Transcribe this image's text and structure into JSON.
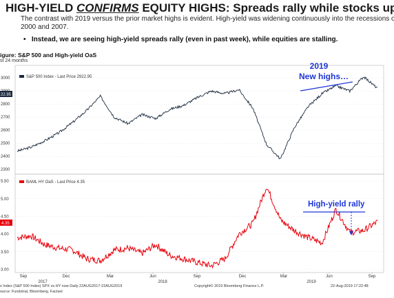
{
  "header": {
    "title_a": "HIGH-YIELD ",
    "title_b": "CONFIRMS",
    "title_c": " EQUITY HIGHS: Spreads rally while stocks up",
    "subtitle": "The contrast with 2019 versus the prior market highs is evident.  High-yield was widening continuously into the recessions of 2000 and 2007.",
    "bullet": "Instead, we are seeing high-yield spreads rally (even in past week), while equities are stalling."
  },
  "figure": {
    "title": "igure: S&P 500 and High-yield OaS",
    "subtitle": "st 24 months"
  },
  "colors": {
    "spx": "#1c2a3f",
    "hy": "#e8000a",
    "annotation": "#1f35d8"
  },
  "chart_data": [
    {
      "type": "line",
      "legend": "S&P 500 Index - Last Price 2922.95",
      "last_value_label": "22.95",
      "y_ticks": [
        "3000",
        "2900",
        "2800",
        "2700",
        "2600",
        "2500",
        "2400",
        "2300"
      ],
      "ylim": [
        2280,
        3080
      ],
      "annotation": "2019\nNew highs…",
      "series": [
        {
          "name": "S&P 500 Index",
          "x": [
            0,
            4,
            8,
            12,
            16,
            20,
            24,
            28,
            32,
            36,
            40,
            44,
            48,
            52,
            56,
            60,
            64,
            68,
            72,
            76,
            80,
            84,
            88,
            92,
            96,
            100,
            104
          ],
          "values": [
            2440,
            2470,
            2520,
            2580,
            2660,
            2750,
            2860,
            2700,
            2650,
            2720,
            2690,
            2760,
            2790,
            2850,
            2900,
            2880,
            2910,
            2770,
            2490,
            2380,
            2620,
            2780,
            2880,
            2940,
            2900,
            3010,
            2920
          ]
        }
      ]
    },
    {
      "type": "line",
      "legend": "BAML HY OaS - Last Price 4.35",
      "last_value_label": "4.35",
      "y_ticks": [
        "5.50",
        "5.00",
        "4.50",
        "4.00",
        "3.50",
        "3.00"
      ],
      "ylim": [
        2.95,
        5.6
      ],
      "annotation": "High-yield rally",
      "series": [
        {
          "name": "BAML HY OaS",
          "x": [
            0,
            4,
            8,
            12,
            16,
            20,
            24,
            28,
            32,
            36,
            40,
            44,
            48,
            52,
            56,
            60,
            64,
            68,
            72,
            76,
            80,
            84,
            88,
            92,
            96,
            100,
            104
          ],
          "values": [
            3.9,
            3.95,
            3.7,
            3.6,
            3.55,
            3.3,
            3.25,
            3.55,
            3.6,
            3.45,
            3.7,
            3.4,
            3.3,
            3.2,
            3.1,
            3.3,
            4.0,
            4.3,
            5.35,
            4.4,
            4.1,
            3.9,
            3.75,
            4.7,
            4.05,
            4.1,
            4.35
          ]
        }
      ]
    }
  ],
  "x_axis": {
    "months": [
      "Sep",
      "Dec",
      "Mar",
      "Jun",
      "Sep",
      "Dec",
      "Mar",
      "Jun",
      "Sep",
      "Dec",
      "Mar",
      "Jun"
    ],
    "years": [
      "2017",
      "2018",
      "2019"
    ]
  },
  "footer": {
    "line1_left": "x Index (S&P 500 Index) SPX vs HY now   Daily 22AUG2017-22AUG2019",
    "line1_mid": "Copyright© 2019 Bloomberg Finance L.P.",
    "line1_right": "22-Aug-2019 17:22:48",
    "line2": "ource: Fundstrat, Bloomberg, Factset"
  }
}
